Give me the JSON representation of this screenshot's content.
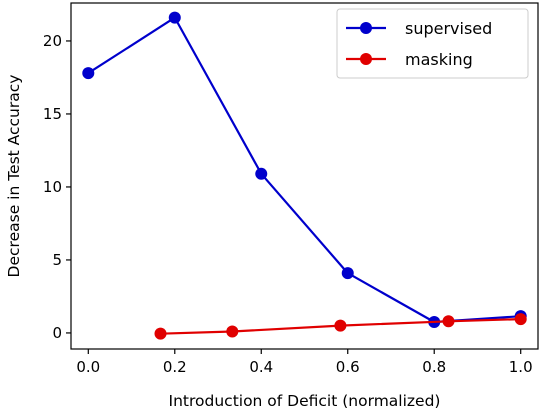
{
  "chart_data": {
    "type": "line",
    "xlabel": "Introduction of Deficit (normalized)",
    "ylabel": "Decrease in Test Accuracy",
    "xlim": [
      -0.04,
      1.04
    ],
    "ylim": [
      -1.1,
      22.6
    ],
    "xticks": [
      "0.0",
      "0.2",
      "0.4",
      "0.6",
      "0.8",
      "1.0"
    ],
    "xtick_values": [
      0.0,
      0.2,
      0.4,
      0.6,
      0.8,
      1.0
    ],
    "yticks": [
      "0",
      "5",
      "10",
      "15",
      "20"
    ],
    "ytick_values": [
      0,
      5,
      10,
      15,
      20
    ],
    "grid": false,
    "legend": "top-right",
    "series": [
      {
        "name": "supervised",
        "color": "#0000cc",
        "x": [
          0.0,
          0.2,
          0.4,
          0.6,
          0.8,
          1.0
        ],
        "y": [
          17.8,
          21.6,
          10.9,
          4.1,
          0.75,
          1.15
        ]
      },
      {
        "name": "masking",
        "color": "#e00000",
        "x": [
          0.167,
          0.333,
          0.583,
          0.833,
          1.0
        ],
        "y": [
          -0.05,
          0.1,
          0.5,
          0.8,
          0.95
        ]
      }
    ]
  }
}
